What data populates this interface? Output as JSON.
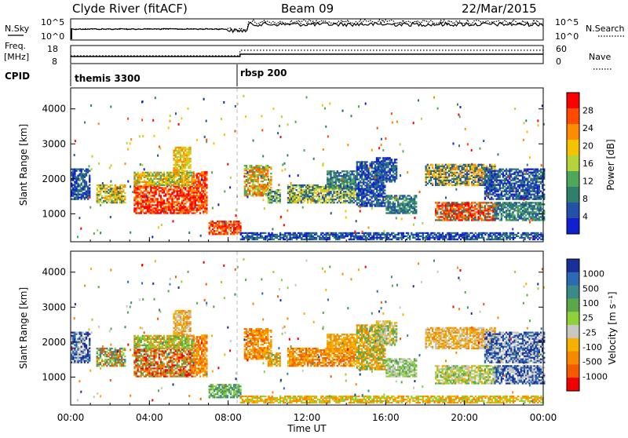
{
  "chart_data": [
    {
      "type": "line",
      "panel": "noise",
      "title": "Clyde River (fitACF)",
      "beam": "Beam 09",
      "date": "22/Mar/2015",
      "left_label": "N.Sky",
      "left_ticks": [
        "10^5",
        "10^0"
      ],
      "right_ticks": [
        "10^5",
        "10^0"
      ],
      "right_label": "N.Search"
    },
    {
      "type": "line",
      "panel": "frequency",
      "left_label_1": "Freq.",
      "left_label_2": "[MHz]",
      "left_ticks": [
        "18",
        "8"
      ],
      "right_ticks": [
        "60",
        "0"
      ],
      "right_label": "Nave",
      "cpid_label": "CPID",
      "segments": [
        {
          "name": "themis 3300",
          "start_hour": 0,
          "end_hour": 8.6
        },
        {
          "name": "rbsp 200",
          "start_hour": 8.6,
          "end_hour": 24
        }
      ]
    },
    {
      "type": "heatmap",
      "panel": "power",
      "ylabel": "Slant Range [km]",
      "yticks": [
        "1000",
        "2000",
        "3000",
        "4000"
      ],
      "ylim": [
        200,
        4600
      ],
      "colorbar_label": "Power [dB]",
      "colorbar_ticks": [
        "28",
        "24",
        "20",
        "16",
        "12",
        "8",
        "4"
      ],
      "colorbar_colors": [
        "#ff0000",
        "#ff4a00",
        "#ff8c00",
        "#f5c400",
        "#b5d33a",
        "#4fa85a",
        "#2e7f6b",
        "#2450a8",
        "#1020d0"
      ]
    },
    {
      "type": "heatmap",
      "panel": "velocity",
      "ylabel": "Slant Range [km]",
      "yticks": [
        "1000",
        "2000",
        "3000",
        "4000"
      ],
      "ylim": [
        200,
        4600
      ],
      "colorbar_label": "Velocity [m s⁻¹]",
      "colorbar_ticks": [
        "1000",
        "500",
        "100",
        "25",
        "-25",
        "-100",
        "-500",
        "-1000"
      ],
      "colorbar_colors": [
        "#1a2f9a",
        "#2d6ab4",
        "#3b8a8a",
        "#5aa84a",
        "#8fd13a",
        "#c8c8c0",
        "#f5b000",
        "#f58a00",
        "#f55a00",
        "#f00000"
      ],
      "xlabel": "Time UT",
      "xticks": [
        "00:00",
        "04:00",
        "08:00",
        "12:00",
        "16:00",
        "20:00",
        "00:00"
      ]
    }
  ]
}
